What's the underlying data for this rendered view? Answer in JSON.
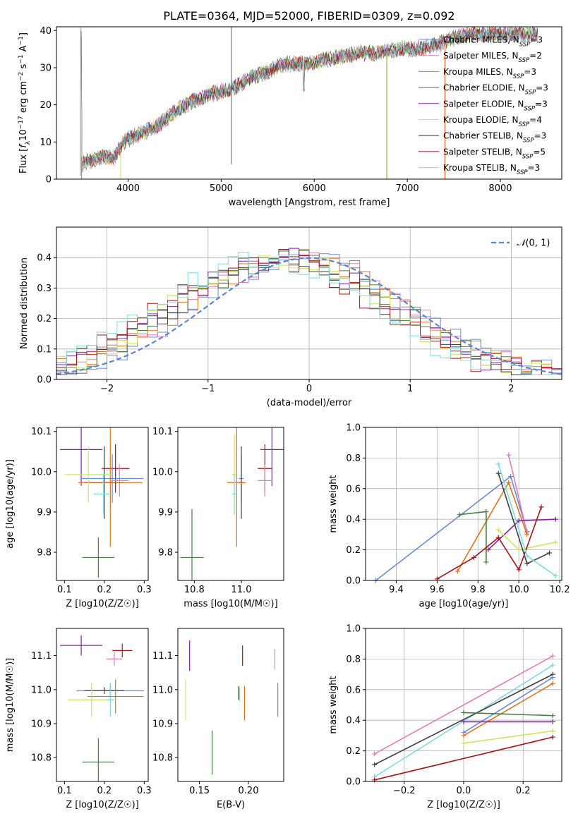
{
  "page": {
    "title": "PLATE=0364, MJD=52000, FIBERID=0309, z=0.092"
  },
  "chart_data": [
    {
      "id": "spectrum",
      "type": "line",
      "title": "PLATE=0364, MJD=52000, FIBERID=0309, z=0.092",
      "xlabel": "wavelength [Angstrom, rest frame]",
      "ylabel": "Flux [f_λ 10^-17 erg cm^-2 s^-1 A^-1]",
      "xlim": [
        3230,
        8660
      ],
      "ylim": [
        0,
        41
      ],
      "x_ticks": [
        4000,
        5000,
        6000,
        7000,
        8000
      ],
      "y_ticks": [
        0,
        10,
        20,
        30,
        40
      ],
      "legend_loc": "upper-right",
      "grid": false,
      "continuum": [
        [
          3500,
          4
        ],
        [
          3700,
          6
        ],
        [
          3850,
          6
        ],
        [
          3950,
          10
        ],
        [
          4100,
          12
        ],
        [
          4300,
          14
        ],
        [
          4500,
          18
        ],
        [
          4700,
          21
        ],
        [
          4900,
          23
        ],
        [
          5100,
          24
        ],
        [
          5300,
          27
        ],
        [
          5500,
          29
        ],
        [
          5700,
          31
        ],
        [
          5900,
          31
        ],
        [
          6100,
          32
        ],
        [
          6300,
          33
        ],
        [
          6500,
          34
        ],
        [
          6700,
          34
        ],
        [
          6900,
          35
        ],
        [
          7100,
          35
        ],
        [
          7300,
          36
        ],
        [
          7500,
          38
        ],
        [
          7700,
          39
        ],
        [
          7900,
          39
        ],
        [
          8100,
          39
        ],
        [
          8400,
          39
        ]
      ],
      "series": [
        {
          "name": "Chabrier MILES, N_SSP=3",
          "color": "#6b8bd9"
        },
        {
          "name": "Salpeter MILES, N_SSP=2",
          "color": "#e07fb8"
        },
        {
          "name": "Kroupa MILES, N_SSP=3",
          "color": "#dd7418"
        },
        {
          "name": "Chabrier ELODIE, N_SSP=3",
          "color": "#4a7b49"
        },
        {
          "name": "Salpeter ELODIE, N_SSP=3",
          "color": "#8b1fa6"
        },
        {
          "name": "Kroupa ELODIE, N_SSP=4",
          "color": "#cbe65c"
        },
        {
          "name": "Chabrier STELIB, N_SSP=3",
          "color": "#404040"
        },
        {
          "name": "Salpeter STELIB, N_SSP=5",
          "color": "#a3151a"
        },
        {
          "name": "Kroupa STELIB, N_SSP=3",
          "color": "#7fd9e0"
        }
      ]
    },
    {
      "id": "residual-distribution",
      "type": "line",
      "xlabel": "(data-model)/error",
      "ylabel": "Normed distribution",
      "xlim": [
        -2.5,
        2.5
      ],
      "ylim": [
        0,
        0.5
      ],
      "x_ticks": [
        -2,
        -1,
        0,
        1,
        2
      ],
      "y_ticks": [
        0.0,
        0.1,
        0.2,
        0.3,
        0.4
      ],
      "grid": true,
      "legend": {
        "label": "N(0,1)",
        "loc": "upper-right"
      },
      "bin_width": 0.1,
      "histogram_series_count": 9
    },
    {
      "id": "age-vs-Z",
      "type": "scatter",
      "xlabel": "Z [log10(Z/Z☉)]",
      "ylabel": "age [log10(age/yr)]",
      "xlim": [
        0.08,
        0.31
      ],
      "ylim": [
        9.73,
        10.11
      ],
      "x_ticks": [
        0.1,
        0.2,
        0.3
      ],
      "y_ticks": [
        9.8,
        9.9,
        10.0,
        10.1
      ],
      "points": [
        {
          "x": 0.142,
          "y": 10.055,
          "xerr": 0.053,
          "yerr": 0.09,
          "color": "#8b1fa6"
        },
        {
          "x": 0.228,
          "y": 10.008,
          "xerr": 0.035,
          "yerr": 0.06,
          "color": "#a3151a"
        },
        {
          "x": 0.22,
          "y": 9.983,
          "xerr": 0.078,
          "yerr": 0.06,
          "color": "#6b8bd9"
        },
        {
          "x": 0.238,
          "y": 9.978,
          "xerr": 0.022,
          "yerr": 0.04,
          "color": "#e07fb8"
        },
        {
          "x": 0.2,
          "y": 9.973,
          "xerr": 0.05,
          "yerr": 0.09,
          "color": "#404040"
        },
        {
          "x": 0.215,
          "y": 9.973,
          "xerr": 0.08,
          "yerr": 0.16,
          "color": "#dd7418"
        },
        {
          "x": 0.16,
          "y": 9.993,
          "xerr": 0.058,
          "yerr": 0.07,
          "color": "#cbe65c"
        },
        {
          "x": 0.198,
          "y": 9.945,
          "xerr": 0.025,
          "yerr": 0.05,
          "color": "#7fd9e0"
        },
        {
          "x": 0.185,
          "y": 9.787,
          "xerr": 0.04,
          "yerr": 0.05,
          "color": "#4a7b49"
        }
      ]
    },
    {
      "id": "age-vs-mass",
      "type": "scatter",
      "xlabel": "mass [log10(M/M☉)]",
      "xlim": [
        10.73,
        11.18
      ],
      "ylim": [
        9.73,
        10.11
      ],
      "x_ticks": [
        10.8,
        11.0
      ],
      "y_ticks": [
        9.8,
        9.9,
        10.0,
        10.1
      ],
      "points": [
        {
          "x": 11.13,
          "y": 10.055,
          "xerr": 0.05,
          "yerr": 0.09,
          "color": "#8b1fa6"
        },
        {
          "x": 11.1,
          "y": 10.008,
          "xerr": 0.03,
          "yerr": 0.06,
          "color": "#a3151a"
        },
        {
          "x": 11.0,
          "y": 9.983,
          "xerr": 0.01,
          "yerr": 0.06,
          "color": "#6b8bd9"
        },
        {
          "x": 11.1,
          "y": 9.978,
          "xerr": 0.03,
          "yerr": 0.04,
          "color": "#e07fb8"
        },
        {
          "x": 11.0,
          "y": 9.973,
          "xerr": 0.01,
          "yerr": 0.09,
          "color": "#404040"
        },
        {
          "x": 10.98,
          "y": 9.973,
          "xerr": 0.04,
          "yerr": 0.16,
          "color": "#dd7418"
        },
        {
          "x": 10.97,
          "y": 9.993,
          "xerr": 0.01,
          "yerr": 0.1,
          "color": "#cbe65c"
        },
        {
          "x": 10.97,
          "y": 9.945,
          "xerr": 0.01,
          "yerr": 0.05,
          "color": "#7fd9e0"
        },
        {
          "x": 10.79,
          "y": 9.787,
          "xerr": 0.05,
          "yerr": 0.12,
          "color": "#4a7b49"
        }
      ]
    },
    {
      "id": "massweight-vs-age",
      "type": "line",
      "xlabel": "age [log10(age/yr)]",
      "ylabel": "mass weight",
      "xlim": [
        9.25,
        10.21
      ],
      "ylim": [
        0,
        1.0
      ],
      "x_ticks": [
        9.4,
        9.6,
        9.8,
        10.0,
        10.2
      ],
      "y_ticks": [
        0.0,
        0.2,
        0.4,
        0.6,
        0.8,
        1.0
      ],
      "grid": true,
      "series": [
        {
          "color": "#6b8bd9",
          "points": [
            [
              9.3,
              0.0
            ],
            [
              9.96,
              0.68
            ],
            [
              10.04,
              0.32
            ]
          ]
        },
        {
          "color": "#e07fb8",
          "points": [
            [
              9.95,
              0.82
            ],
            [
              10.04,
              0.31
            ]
          ]
        },
        {
          "color": "#dd7418",
          "points": [
            [
              9.7,
              0.06
            ],
            [
              9.95,
              0.64
            ],
            [
              10.04,
              0.3
            ]
          ]
        },
        {
          "color": "#4a7b49",
          "points": [
            [
              9.71,
              0.43
            ],
            [
              9.84,
              0.45
            ],
            [
              9.84,
              0.12
            ]
          ]
        },
        {
          "color": "#8b1fa6",
          "points": [
            [
              9.85,
              0.2
            ],
            [
              10.0,
              0.39
            ],
            [
              10.18,
              0.4
            ]
          ]
        },
        {
          "color": "#cbe65c",
          "points": [
            [
              9.9,
              0.33
            ],
            [
              10.0,
              0.2
            ],
            [
              10.18,
              0.25
            ]
          ]
        },
        {
          "color": "#404040",
          "points": [
            [
              9.9,
              0.7
            ],
            [
              10.04,
              0.11
            ],
            [
              10.15,
              0.18
            ]
          ]
        },
        {
          "color": "#a3151a",
          "points": [
            [
              9.6,
              0.01
            ],
            [
              9.78,
              0.15
            ],
            [
              9.9,
              0.28
            ],
            [
              10.0,
              0.07
            ],
            [
              10.11,
              0.48
            ]
          ]
        },
        {
          "color": "#7fd9e0",
          "points": [
            [
              9.9,
              0.76
            ],
            [
              10.04,
              0.16
            ],
            [
              10.18,
              0.03
            ]
          ]
        }
      ]
    },
    {
      "id": "mass-vs-Z",
      "type": "scatter",
      "xlabel": "Z [log10(Z/Z☉)]",
      "ylabel": "mass [log10(M/M☉)]",
      "xlim": [
        0.08,
        0.31
      ],
      "ylim": [
        10.73,
        11.18
      ],
      "x_ticks": [
        0.1,
        0.2,
        0.3
      ],
      "y_ticks": [
        10.8,
        10.9,
        11.0,
        11.1
      ],
      "points": [
        {
          "x": 0.142,
          "y": 11.13,
          "xerr": 0.053,
          "yerr": 0.03,
          "color": "#8b1fa6"
        },
        {
          "x": 0.245,
          "y": 11.115,
          "xerr": 0.025,
          "yerr": 0.02,
          "color": "#a3151a"
        },
        {
          "x": 0.225,
          "y": 11.09,
          "xerr": 0.02,
          "yerr": 0.02,
          "color": "#e07fb8"
        },
        {
          "x": 0.215,
          "y": 10.997,
          "xerr": 0.085,
          "yerr": 0.02,
          "color": "#6b8bd9"
        },
        {
          "x": 0.2,
          "y": 10.997,
          "xerr": 0.05,
          "yerr": 0.01,
          "color": "#404040"
        },
        {
          "x": 0.228,
          "y": 10.98,
          "xerr": 0.07,
          "yerr": 0.05,
          "color": "#dd7418"
        },
        {
          "x": 0.168,
          "y": 10.97,
          "xerr": 0.06,
          "yerr": 0.05,
          "color": "#cbe65c"
        },
        {
          "x": 0.215,
          "y": 10.97,
          "xerr": 0.01,
          "yerr": 0.05,
          "color": "#7fd9e0"
        },
        {
          "x": 0.185,
          "y": 10.787,
          "xerr": 0.04,
          "yerr": 0.07,
          "color": "#4a7b49"
        }
      ]
    },
    {
      "id": "mass-vs-ebv",
      "type": "scatter",
      "xlabel": "E(B-V)",
      "xlim": [
        0.128,
        0.236
      ],
      "ylim": [
        10.73,
        11.18
      ],
      "x_ticks": [
        0.15,
        0.2
      ],
      "y_ticks": [
        10.8,
        10.9,
        11.0,
        11.1
      ],
      "points": [
        {
          "x": 0.14,
          "y": 11.1,
          "yerr": 0.045,
          "color": "#8b1fa6"
        },
        {
          "x": 0.194,
          "y": 11.1,
          "yerr": 0.03,
          "color": "#a3151a"
        },
        {
          "x": 0.227,
          "y": 11.09,
          "yerr": 0.03,
          "color": "#e07fb8"
        },
        {
          "x": 0.23,
          "y": 10.97,
          "yerr": 0.05,
          "color": "#6b8bd9"
        },
        {
          "x": 0.19,
          "y": 10.99,
          "yerr": 0.02,
          "color": "#404040"
        },
        {
          "x": 0.196,
          "y": 10.96,
          "yerr": 0.05,
          "color": "#dd7418"
        },
        {
          "x": 0.136,
          "y": 10.97,
          "yerr": 0.06,
          "color": "#cbe65c"
        },
        {
          "x": 0.191,
          "y": 10.985,
          "yerr": 0.02,
          "color": "#7fd9e0"
        },
        {
          "x": 0.163,
          "y": 10.815,
          "yerr": 0.065,
          "color": "#4a7b49"
        }
      ]
    },
    {
      "id": "massweight-vs-Z",
      "type": "line",
      "xlabel": "Z [log10(Z/Z☉)]",
      "ylabel": "mass weight",
      "xlim": [
        -0.33,
        0.33
      ],
      "ylim": [
        0,
        1.0
      ],
      "x_ticks": [
        -0.2,
        0.0,
        0.2
      ],
      "y_ticks": [
        0.0,
        0.2,
        0.4,
        0.6,
        0.8,
        1.0
      ],
      "grid": true,
      "series": [
        {
          "color": "#e07fb8",
          "points": [
            [
              -0.3,
              0.18
            ],
            [
              0.3,
              0.82
            ]
          ]
        },
        {
          "color": "#7fd9e0",
          "points": [
            [
              -0.3,
              0.03
            ],
            [
              0.3,
              0.76
            ]
          ]
        },
        {
          "color": "#404040",
          "points": [
            [
              -0.3,
              0.11
            ],
            [
              0.3,
              0.7
            ]
          ]
        },
        {
          "color": "#6b8bd9",
          "points": [
            [
              0.0,
              0.32
            ],
            [
              0.3,
              0.68
            ]
          ]
        },
        {
          "color": "#dd7418",
          "points": [
            [
              0.0,
              0.3
            ],
            [
              0.3,
              0.64
            ]
          ]
        },
        {
          "color": "#4a7b49",
          "points": [
            [
              0.0,
              0.45
            ],
            [
              0.3,
              0.43
            ]
          ]
        },
        {
          "color": "#8b1fa6",
          "points": [
            [
              0.0,
              0.39
            ],
            [
              0.3,
              0.39
            ]
          ]
        },
        {
          "color": "#cbe65c",
          "points": [
            [
              0.0,
              0.25
            ],
            [
              0.3,
              0.33
            ]
          ]
        },
        {
          "color": "#a3151a",
          "points": [
            [
              -0.3,
              0.01
            ],
            [
              0.3,
              0.29
            ]
          ]
        }
      ]
    }
  ]
}
